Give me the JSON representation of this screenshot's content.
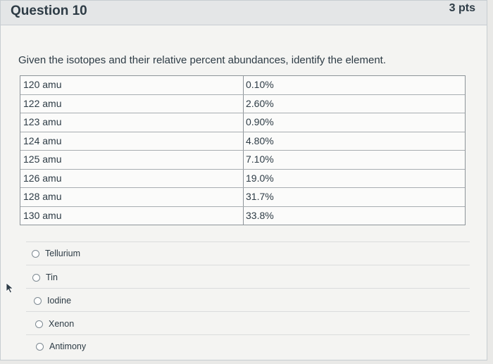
{
  "header": {
    "title": "Question 10",
    "points": "3 pts"
  },
  "question": {
    "prompt": "Given the isotopes and their relative percent abundances, identify the element."
  },
  "table": {
    "rows": [
      {
        "mass": "120 amu",
        "abundance": "0.10%"
      },
      {
        "mass": "122 amu",
        "abundance": "2.60%"
      },
      {
        "mass": "123 amu",
        "abundance": "0.90%"
      },
      {
        "mass": "124 amu",
        "abundance": "4.80%"
      },
      {
        "mass": "125 amu",
        "abundance": "7.10%"
      },
      {
        "mass": "126 amu",
        "abundance": "19.0%"
      },
      {
        "mass": "128 amu",
        "abundance": "31.7%"
      },
      {
        "mass": "130 amu",
        "abundance": "33.8%"
      }
    ]
  },
  "answers": {
    "options": [
      {
        "label": "Tellurium"
      },
      {
        "label": "Tin"
      },
      {
        "label": "Iodine"
      },
      {
        "label": "Xenon"
      },
      {
        "label": "Antimony"
      }
    ]
  },
  "icons": {
    "cursor": "pointer-cursor-icon"
  }
}
